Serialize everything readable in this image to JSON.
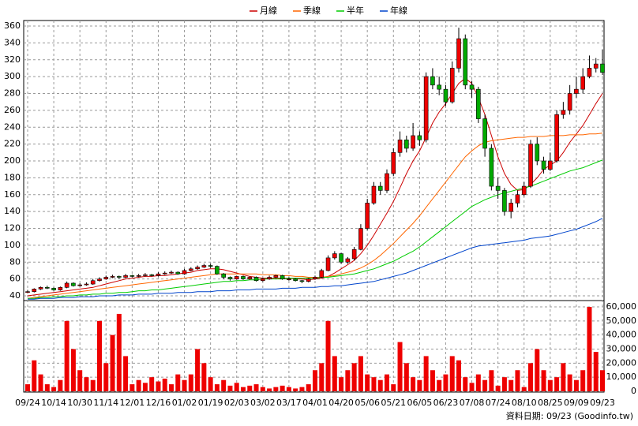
{
  "chart_data": {
    "type": "candlestick",
    "footer": "資料日期: 09/23 (Goodinfo.tw)",
    "categories": [
      "09/24",
      null,
      null,
      null,
      "10/14",
      null,
      null,
      null,
      "10/30",
      null,
      null,
      null,
      "11/14",
      null,
      null,
      null,
      "12/01",
      null,
      null,
      null,
      "12/16",
      null,
      null,
      null,
      "01/02",
      null,
      null,
      null,
      "01/19",
      null,
      null,
      null,
      "02/03",
      null,
      null,
      null,
      "03/02",
      null,
      null,
      null,
      "03/17",
      null,
      null,
      null,
      "04/01",
      null,
      null,
      null,
      "04/20",
      null,
      null,
      null,
      "05/06",
      null,
      null,
      null,
      "05/21",
      null,
      null,
      null,
      "06/05",
      null,
      null,
      null,
      "06/23",
      null,
      null,
      null,
      "07/08",
      null,
      null,
      null,
      "07/24",
      null,
      null,
      null,
      "08/10",
      null,
      null,
      null,
      "08/25",
      null,
      null,
      null,
      "09/09",
      null,
      null,
      null,
      "09/23"
    ],
    "open": [
      44,
      45,
      48,
      50,
      49,
      47,
      50,
      55,
      52,
      53,
      54,
      58,
      60,
      62,
      63,
      62,
      64,
      63,
      64,
      65,
      64,
      66,
      67,
      68,
      66,
      70,
      72,
      74,
      76,
      75,
      66,
      62,
      60,
      63,
      60,
      62,
      58,
      60,
      62,
      64,
      60,
      60,
      58,
      57,
      60,
      62,
      70,
      85,
      90,
      80,
      84,
      95,
      120,
      150,
      170,
      165,
      185,
      210,
      225,
      215,
      230,
      225,
      300,
      290,
      285,
      270,
      310,
      345,
      290,
      285,
      250,
      215,
      170,
      165,
      140,
      150,
      160,
      170,
      220,
      200,
      190,
      200,
      255,
      260,
      280,
      285,
      300,
      310,
      315
    ],
    "high": [
      47,
      49,
      51,
      52,
      50,
      51,
      57,
      56,
      55,
      56,
      60,
      62,
      64,
      65,
      64,
      66,
      65,
      66,
      67,
      66,
      68,
      69,
      70,
      69,
      72,
      74,
      76,
      78,
      78,
      76,
      67,
      63,
      64,
      64,
      63,
      63,
      61,
      64,
      65,
      65,
      62,
      61,
      59,
      61,
      64,
      72,
      88,
      93,
      91,
      86,
      98,
      125,
      155,
      175,
      175,
      190,
      215,
      235,
      230,
      245,
      235,
      305,
      310,
      300,
      290,
      318,
      358,
      350,
      295,
      288,
      255,
      220,
      180,
      168,
      155,
      165,
      175,
      225,
      228,
      205,
      210,
      260,
      270,
      290,
      300,
      310,
      325,
      322,
      332
    ],
    "low": [
      43,
      44,
      47,
      48,
      46,
      46,
      49,
      51,
      51,
      52,
      53,
      57,
      59,
      61,
      60,
      61,
      62,
      62,
      63,
      63,
      63,
      65,
      66,
      65,
      65,
      69,
      71,
      73,
      73,
      65,
      60,
      58,
      59,
      59,
      59,
      57,
      57,
      59,
      61,
      59,
      58,
      57,
      55,
      56,
      59,
      61,
      69,
      83,
      78,
      78,
      82,
      94,
      118,
      148,
      160,
      162,
      182,
      205,
      210,
      212,
      218,
      222,
      285,
      278,
      265,
      268,
      305,
      285,
      275,
      245,
      205,
      165,
      155,
      135,
      132,
      145,
      158,
      168,
      195,
      185,
      188,
      198,
      250,
      255,
      275,
      280,
      298,
      305,
      302
    ],
    "close": [
      45,
      48,
      50,
      49,
      47,
      50,
      55,
      52,
      53,
      54,
      58,
      60,
      62,
      63,
      62,
      64,
      63,
      64,
      65,
      64,
      66,
      67,
      68,
      66,
      70,
      72,
      74,
      76,
      75,
      66,
      62,
      60,
      63,
      60,
      62,
      58,
      60,
      62,
      64,
      60,
      60,
      58,
      57,
      60,
      62,
      70,
      85,
      90,
      80,
      84,
      95,
      120,
      150,
      170,
      165,
      185,
      210,
      225,
      215,
      230,
      225,
      300,
      290,
      285,
      270,
      310,
      345,
      290,
      285,
      250,
      215,
      170,
      165,
      140,
      150,
      160,
      170,
      220,
      200,
      190,
      200,
      255,
      260,
      280,
      285,
      300,
      310,
      315,
      305
    ],
    "up_color": "#ee0000",
    "down_color": "#00aa00",
    "series": [
      {
        "name": "月線",
        "color": "#cc0000",
        "values": [
          40,
          41,
          42,
          43,
          44,
          45,
          46,
          47,
          48,
          49,
          50,
          52,
          54,
          56,
          58,
          60,
          61,
          62,
          63,
          63,
          64,
          64,
          65,
          66,
          67,
          68,
          70,
          71,
          72,
          72,
          71,
          69,
          67,
          65,
          63,
          62,
          61,
          61,
          61,
          61,
          61,
          60,
          60,
          59,
          60,
          61,
          63,
          67,
          72,
          77,
          82,
          90,
          100,
          112,
          125,
          138,
          152,
          168,
          185,
          200,
          212,
          228,
          245,
          258,
          268,
          280,
          292,
          298,
          292,
          275,
          255,
          230,
          205,
          185,
          172,
          165,
          166,
          172,
          180,
          190,
          195,
          200,
          210,
          222,
          232,
          242,
          255,
          268,
          280
        ]
      },
      {
        "name": "季線",
        "color": "#ff6600",
        "values": [
          37,
          38,
          39,
          40,
          41,
          42,
          43,
          44,
          45,
          46,
          47,
          48,
          49,
          50,
          51,
          52,
          53,
          54,
          55,
          56,
          57,
          58,
          59,
          60,
          61,
          62,
          63,
          64,
          65,
          66,
          66,
          66,
          66,
          66,
          66,
          66,
          65,
          65,
          65,
          64,
          64,
          63,
          63,
          62,
          62,
          62,
          63,
          64,
          66,
          68,
          70,
          73,
          77,
          82,
          88,
          95,
          102,
          110,
          118,
          126,
          135,
          145,
          155,
          165,
          175,
          185,
          195,
          205,
          212,
          218,
          222,
          224,
          225,
          226,
          227,
          228,
          228,
          229,
          229,
          229,
          230,
          230,
          230,
          231,
          231,
          231,
          232,
          232,
          233
        ]
      },
      {
        "name": "半年",
        "color": "#00cc00",
        "values": [
          37,
          37,
          38,
          38,
          39,
          39,
          40,
          40,
          41,
          41,
          42,
          42,
          43,
          43,
          44,
          44,
          45,
          46,
          46,
          47,
          47,
          48,
          49,
          50,
          51,
          52,
          53,
          54,
          55,
          56,
          57,
          57,
          58,
          58,
          59,
          59,
          60,
          60,
          60,
          60,
          61,
          61,
          61,
          61,
          61,
          62,
          62,
          63,
          64,
          65,
          66,
          68,
          70,
          72,
          75,
          78,
          81,
          85,
          89,
          93,
          98,
          104,
          110,
          116,
          122,
          128,
          134,
          140,
          146,
          150,
          154,
          157,
          160,
          162,
          164,
          166,
          168,
          170,
          173,
          176,
          179,
          182,
          185,
          188,
          190,
          192,
          195,
          198,
          201
        ]
      },
      {
        "name": "年線",
        "color": "#0044cc",
        "values": [
          36,
          36,
          37,
          37,
          37,
          38,
          38,
          38,
          39,
          39,
          39,
          40,
          40,
          40,
          41,
          41,
          41,
          42,
          42,
          42,
          43,
          43,
          43,
          44,
          44,
          44,
          45,
          45,
          45,
          46,
          46,
          46,
          47,
          47,
          47,
          48,
          48,
          48,
          48,
          49,
          49,
          49,
          50,
          50,
          50,
          51,
          51,
          52,
          52,
          53,
          54,
          55,
          56,
          57,
          59,
          61,
          63,
          65,
          67,
          70,
          73,
          76,
          79,
          82,
          85,
          88,
          91,
          94,
          97,
          99,
          100,
          101,
          102,
          103,
          104,
          105,
          106,
          108,
          109,
          110,
          111,
          113,
          115,
          117,
          119,
          122,
          125,
          128,
          132
        ]
      }
    ],
    "volume": [
      5000,
      22000,
      12000,
      5000,
      3000,
      8000,
      50000,
      30000,
      15000,
      10000,
      8000,
      50000,
      20000,
      40000,
      55000,
      25000,
      5000,
      8000,
      6000,
      10000,
      7000,
      9000,
      5000,
      12000,
      8000,
      12000,
      30000,
      20000,
      10000,
      5000,
      8000,
      4000,
      6000,
      3000,
      4000,
      5000,
      3000,
      2000,
      3000,
      4000,
      3000,
      2000,
      3000,
      5000,
      15000,
      20000,
      50000,
      25000,
      10000,
      15000,
      20000,
      25000,
      12000,
      10000,
      8000,
      12000,
      5000,
      35000,
      20000,
      10000,
      8000,
      25000,
      15000,
      8000,
      12000,
      25000,
      22000,
      10000,
      6000,
      12000,
      8000,
      15000,
      4000,
      10000,
      8000,
      15000,
      3000,
      20000,
      30000,
      15000,
      8000,
      10000,
      20000,
      12000,
      8000,
      15000,
      60000,
      28000,
      15000
    ],
    "volume_color": "#ee0000",
    "ylim": [
      40,
      360
    ],
    "yticks": [
      40,
      60,
      80,
      100,
      120,
      140,
      160,
      180,
      200,
      220,
      240,
      260,
      280,
      300,
      320,
      340,
      360
    ],
    "y2lim": [
      0,
      60000
    ],
    "y2ticks": [
      0,
      {
        "value": 10000,
        "label": "10,000"
      },
      {
        "value": 20000,
        "label": "20,000"
      },
      {
        "value": 30000,
        "label": "30,000"
      },
      {
        "value": 40000,
        "label": "40,000"
      },
      {
        "value": 50000,
        "label": "50,000"
      },
      {
        "value": 60000,
        "label": "60,000"
      }
    ],
    "grid": true
  }
}
